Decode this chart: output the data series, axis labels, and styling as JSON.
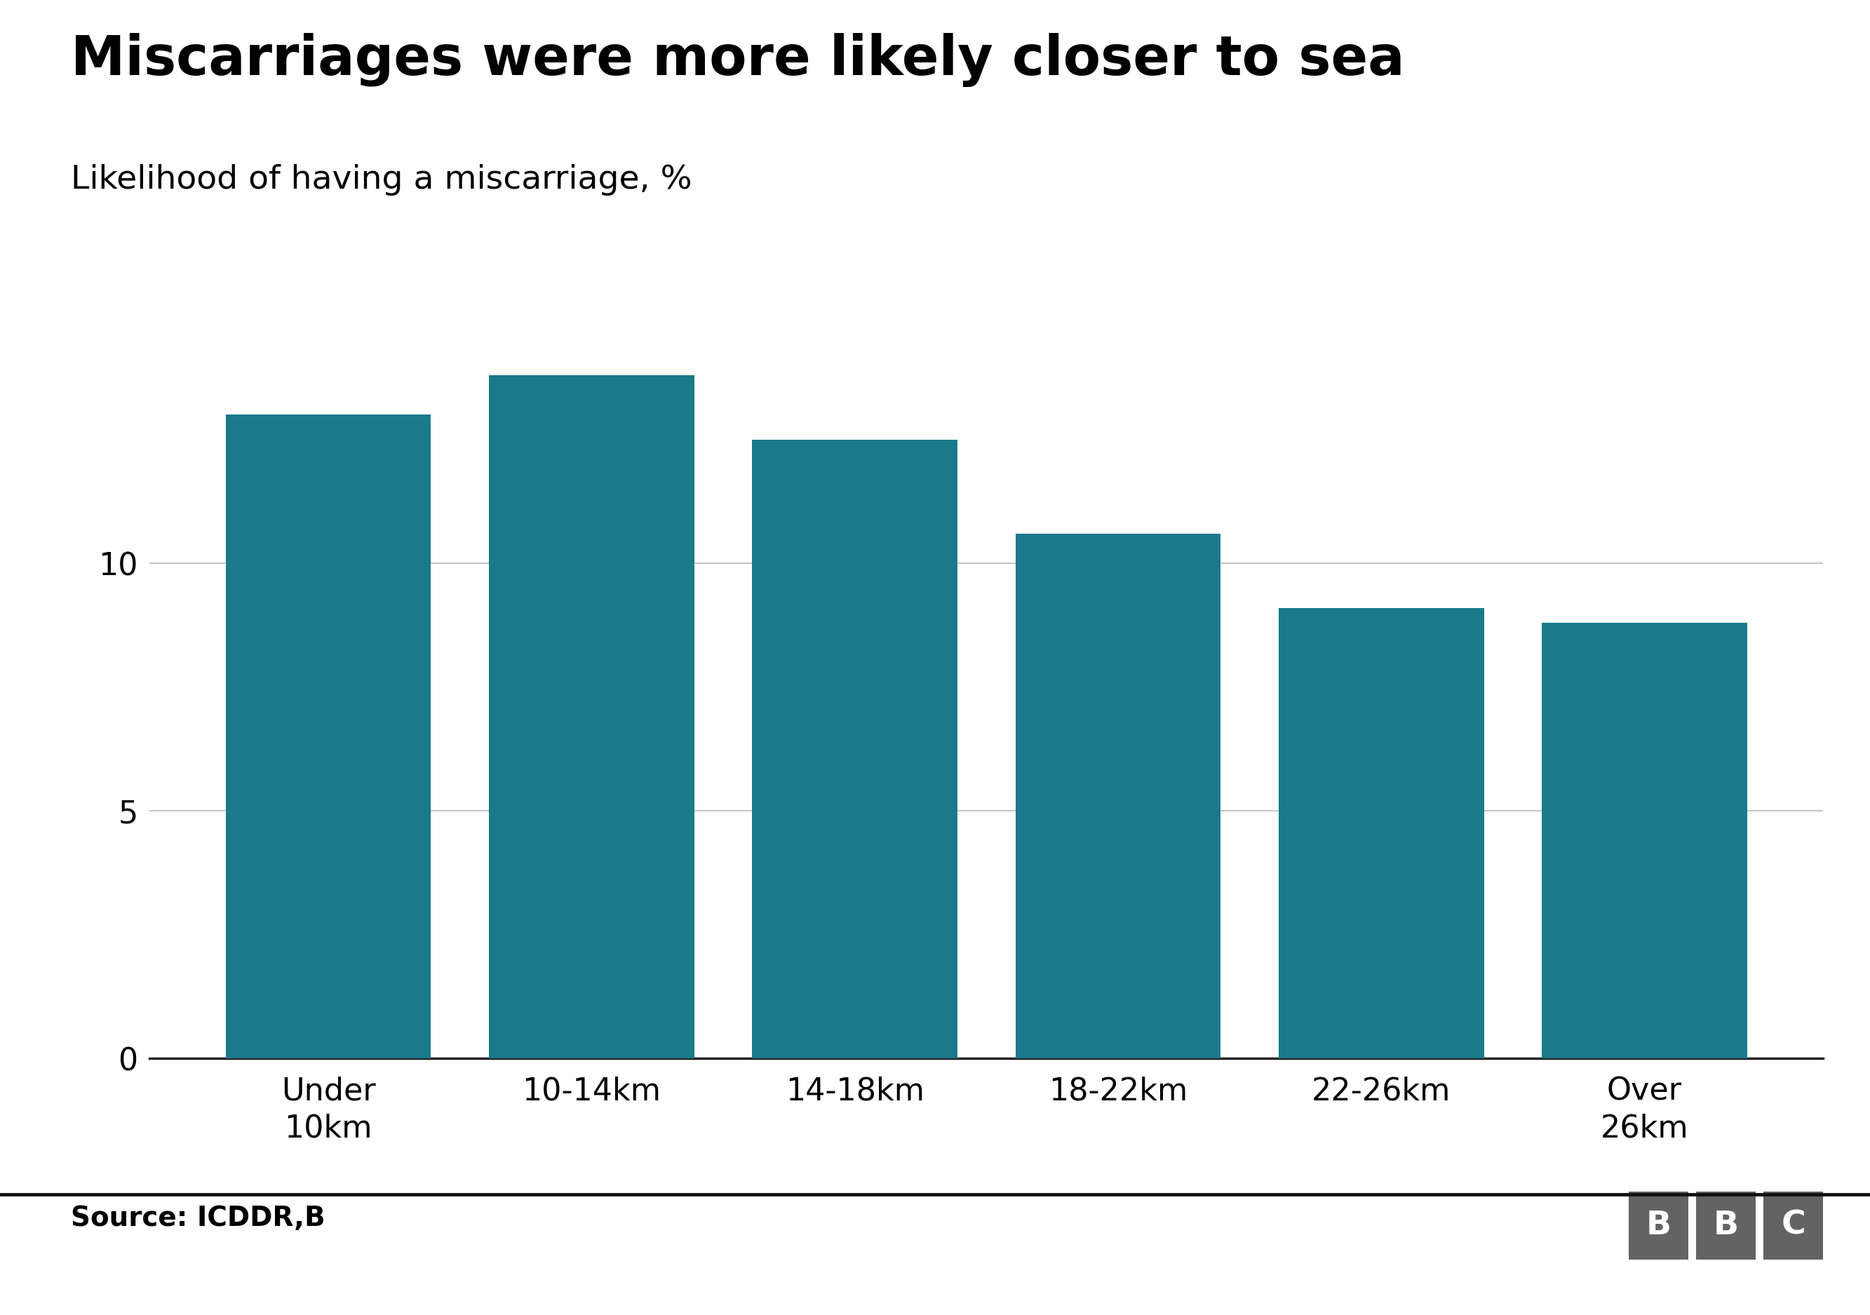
{
  "title": "Miscarriages were more likely closer to sea",
  "subtitle": "Likelihood of having a miscarriage, %",
  "categories": [
    "Under\n10km",
    "10-14km",
    "14-18km",
    "18-22km",
    "22-26km",
    "Over\n26km"
  ],
  "values": [
    13.0,
    13.8,
    12.5,
    10.6,
    9.1,
    8.8
  ],
  "bar_color": "#1a7a8a",
  "background_color": "#ffffff",
  "ylim": [
    0,
    15
  ],
  "yticks": [
    0,
    5,
    10
  ],
  "source_text": "Source: ICDDR,B",
  "title_fontsize": 56,
  "subtitle_fontsize": 34,
  "tick_fontsize": 32,
  "source_fontsize": 28,
  "bar_width": 0.78,
  "grid_color": "#bbbbbb",
  "axis_color": "#222222",
  "footer_line_color": "#111111",
  "bbc_box_color": "#636363",
  "bbc_text_color": "#ffffff"
}
